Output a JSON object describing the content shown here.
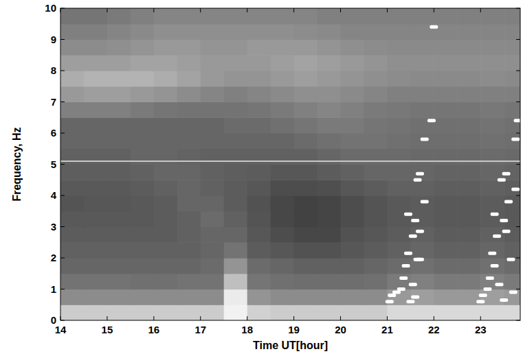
{
  "chart_data": {
    "type": "heatmap",
    "x_label": "Time UT[hour]",
    "y_label": "Frequency, Hz",
    "xlim": [
      14,
      23.85
    ],
    "ylim": [
      0,
      10
    ],
    "xticks": [
      14,
      15,
      16,
      17,
      18,
      19,
      20,
      21,
      22,
      23
    ],
    "yticks": [
      0,
      1,
      2,
      3,
      4,
      5,
      6,
      7,
      8,
      9,
      10
    ],
    "x_bins": [
      14,
      14.5,
      15,
      15.5,
      16,
      16.5,
      17,
      17.5,
      18,
      18.5,
      19,
      19.5,
      20,
      20.5,
      21,
      21.5,
      22,
      22.5,
      23,
      23.5,
      24
    ],
    "y_bins": [
      0,
      0.5,
      1,
      1.5,
      2,
      2.5,
      3,
      3.5,
      4,
      4.5,
      5,
      5.5,
      6,
      6.5,
      7,
      7.5,
      8,
      8.5,
      9,
      9.5,
      10
    ],
    "zlim": [
      0,
      100
    ],
    "cells": [
      [
        80,
        80,
        80,
        80,
        80,
        80,
        80,
        95,
        82,
        80,
        80,
        80,
        80,
        80,
        85,
        85,
        85,
        85,
        85,
        85
      ],
      [
        55,
        55,
        55,
        55,
        55,
        55,
        55,
        92,
        58,
        55,
        55,
        55,
        55,
        55,
        60,
        62,
        60,
        60,
        62,
        60
      ],
      [
        45,
        45,
        45,
        44,
        44,
        45,
        45,
        75,
        46,
        44,
        43,
        43,
        43,
        44,
        48,
        50,
        48,
        48,
        50,
        48
      ],
      [
        40,
        40,
        40,
        40,
        40,
        40,
        42,
        58,
        42,
        40,
        38,
        38,
        38,
        40,
        42,
        44,
        42,
        42,
        44,
        42
      ],
      [
        38,
        38,
        38,
        38,
        38,
        38,
        40,
        45,
        36,
        34,
        32,
        32,
        34,
        36,
        38,
        40,
        38,
        38,
        40,
        38
      ],
      [
        36,
        36,
        36,
        36,
        36,
        38,
        40,
        40,
        34,
        30,
        28,
        28,
        32,
        34,
        36,
        38,
        36,
        36,
        38,
        36
      ],
      [
        35,
        35,
        35,
        35,
        36,
        38,
        42,
        38,
        33,
        28,
        26,
        27,
        30,
        33,
        35,
        36,
        35,
        35,
        36,
        35
      ],
      [
        33,
        34,
        34,
        35,
        36,
        40,
        40,
        36,
        32,
        28,
        26,
        27,
        30,
        33,
        35,
        36,
        35,
        35,
        36,
        35
      ],
      [
        35,
        35,
        35,
        36,
        38,
        40,
        38,
        36,
        34,
        30,
        30,
        31,
        34,
        36,
        38,
        38,
        37,
        37,
        38,
        37
      ],
      [
        37,
        37,
        37,
        38,
        40,
        40,
        38,
        37,
        36,
        34,
        34,
        36,
        38,
        40,
        40,
        40,
        39,
        39,
        40,
        39
      ],
      [
        38,
        38,
        38,
        40,
        40,
        39,
        38,
        38,
        38,
        38,
        38,
        40,
        42,
        42,
        42,
        41,
        41,
        41,
        42,
        41
      ],
      [
        40,
        40,
        40,
        40,
        40,
        40,
        40,
        40,
        40,
        40,
        42,
        44,
        45,
        45,
        44,
        43,
        43,
        43,
        44,
        43
      ],
      [
        40,
        40,
        40,
        40,
        40,
        40,
        40,
        42,
        42,
        44,
        46,
        48,
        48,
        46,
        45,
        44,
        44,
        44,
        45,
        44
      ],
      [
        50,
        50,
        50,
        48,
        46,
        45,
        45,
        45,
        46,
        48,
        50,
        52,
        50,
        48,
        47,
        46,
        46,
        46,
        47,
        46
      ],
      [
        60,
        62,
        62,
        60,
        58,
        55,
        52,
        50,
        52,
        54,
        56,
        56,
        54,
        52,
        50,
        50,
        50,
        50,
        50,
        50
      ],
      [
        68,
        70,
        70,
        70,
        68,
        64,
        60,
        58,
        58,
        60,
        62,
        60,
        58,
        56,
        55,
        54,
        54,
        54,
        55,
        54
      ],
      [
        62,
        62,
        62,
        64,
        64,
        62,
        60,
        60,
        60,
        62,
        64,
        62,
        60,
        58,
        56,
        56,
        56,
        56,
        56,
        56
      ],
      [
        55,
        55,
        56,
        58,
        60,
        60,
        58,
        58,
        60,
        60,
        60,
        58,
        56,
        55,
        54,
        54,
        54,
        54,
        54,
        54
      ],
      [
        50,
        50,
        52,
        54,
        56,
        56,
        56,
        56,
        56,
        56,
        55,
        54,
        52,
        52,
        52,
        52,
        52,
        52,
        52,
        52
      ],
      [
        46,
        46,
        48,
        50,
        52,
        52,
        52,
        52,
        52,
        52,
        52,
        50,
        50,
        50,
        50,
        50,
        50,
        50,
        50,
        50
      ]
    ],
    "hline": {
      "y": 5.1,
      "color": "#c8c8c8"
    },
    "points": {
      "color": "#ffffff",
      "marker": "dash",
      "x": [
        21.05,
        21.1,
        21.2,
        21.3,
        21.35,
        21.4,
        21.45,
        21.55,
        21.45,
        21.6,
        21.65,
        21.7,
        21.55,
        21.5,
        21.65,
        21.7,
        21.8,
        21.8,
        21.95,
        22.0,
        21.7,
        21.6,
        23.0,
        23.05,
        23.15,
        23.2,
        23.3,
        23.25,
        23.35,
        23.3,
        23.5,
        23.45,
        23.55,
        23.4,
        23.5,
        23.65,
        23.55,
        23.75,
        23.75,
        23.8,
        23.7,
        23.6
      ],
      "y": [
        0.6,
        0.8,
        0.9,
        1.0,
        1.35,
        1.75,
        2.15,
        2.7,
        3.4,
        3.2,
        4.5,
        4.7,
        1.15,
        0.6,
        1.95,
        2.85,
        3.8,
        5.8,
        6.4,
        9.4,
        1.95,
        0.75,
        0.6,
        0.8,
        1.0,
        1.35,
        1.75,
        2.15,
        2.7,
        3.4,
        3.2,
        4.5,
        4.7,
        1.15,
        0.65,
        1.95,
        2.85,
        4.2,
        5.8,
        6.4,
        0.9,
        3.8
      ]
    }
  }
}
